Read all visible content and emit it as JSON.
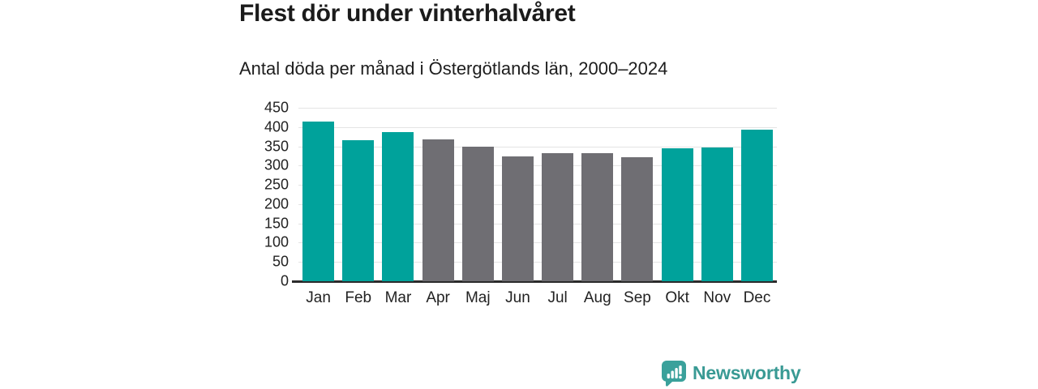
{
  "header": {
    "title": "Flest dör under vinterhalvåret",
    "subtitle": "Antal döda per månad i Östergötlands län, 2000–2024"
  },
  "chart_data": {
    "type": "bar",
    "title": "Flest dör under vinterhalvåret",
    "subtitle": "Antal döda per månad i Östergötlands län, 2000–2024",
    "categories": [
      "Jan",
      "Feb",
      "Mar",
      "Apr",
      "Maj",
      "Jun",
      "Jul",
      "Aug",
      "Sep",
      "Okt",
      "Nov",
      "Dec"
    ],
    "values": [
      415,
      366,
      386,
      367,
      350,
      323,
      333,
      332,
      322,
      345,
      347,
      393
    ],
    "bar_seasons": [
      "winter",
      "winter",
      "winter",
      "summer",
      "summer",
      "summer",
      "summer",
      "summer",
      "summer",
      "winter",
      "winter",
      "winter"
    ],
    "colors": {
      "winter": "#00a29b",
      "summer": "#6f6e73"
    },
    "xlabel": "",
    "ylabel": "",
    "ylim": [
      0,
      450
    ],
    "yticks": [
      450,
      400,
      350,
      300,
      250,
      200,
      150,
      100,
      50,
      0
    ],
    "grid": true,
    "legend": "none",
    "gridline_color": "#e4e4e4",
    "axis_line_color": "#2b2b2b"
  },
  "branding": {
    "logo_text": "Newsworthy",
    "logo_color": "#399a94",
    "icon": "newsworthy-speech-bubble-bar-chart-icon",
    "icon_color": "#3aa19b"
  }
}
